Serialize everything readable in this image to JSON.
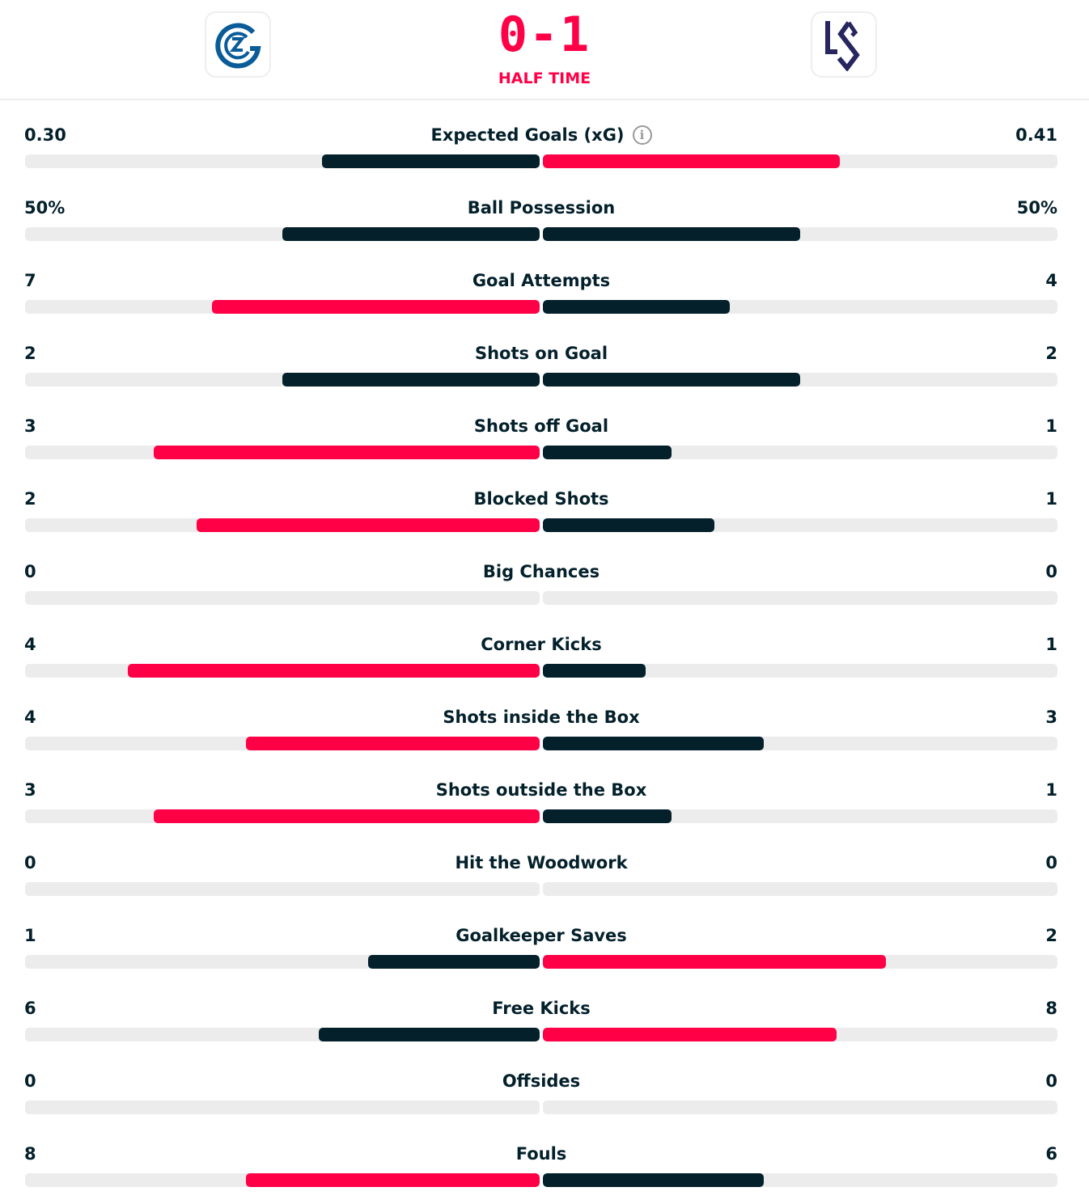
{
  "match": {
    "home_team": "Grasshopper Club Zürich",
    "away_team": "FC Lausanne-Sport",
    "home_logo_text": "GCZ",
    "away_logo_text": "LS",
    "score": "0-1",
    "status": "HALF TIME"
  },
  "colors": {
    "accent": "#ff0046",
    "dark": "#03202b",
    "track": "#ececec"
  },
  "stats": [
    {
      "label": "Expected Goals (xG)",
      "home": "0.30",
      "away": "0.41",
      "info_icon": "i"
    },
    {
      "label": "Ball Possession",
      "home": "50%",
      "away": "50%"
    },
    {
      "label": "Goal Attempts",
      "home": "7",
      "away": "4"
    },
    {
      "label": "Shots on Goal",
      "home": "2",
      "away": "2"
    },
    {
      "label": "Shots off Goal",
      "home": "3",
      "away": "1"
    },
    {
      "label": "Blocked Shots",
      "home": "2",
      "away": "1"
    },
    {
      "label": "Big Chances",
      "home": "0",
      "away": "0"
    },
    {
      "label": "Corner Kicks",
      "home": "4",
      "away": "1"
    },
    {
      "label": "Shots inside the Box",
      "home": "4",
      "away": "3"
    },
    {
      "label": "Shots outside the Box",
      "home": "3",
      "away": "1"
    },
    {
      "label": "Hit the Woodwork",
      "home": "0",
      "away": "0"
    },
    {
      "label": "Goalkeeper Saves",
      "home": "1",
      "away": "2"
    },
    {
      "label": "Free Kicks",
      "home": "6",
      "away": "8"
    },
    {
      "label": "Offsides",
      "home": "0",
      "away": "0"
    },
    {
      "label": "Fouls",
      "home": "8",
      "away": "6"
    }
  ]
}
